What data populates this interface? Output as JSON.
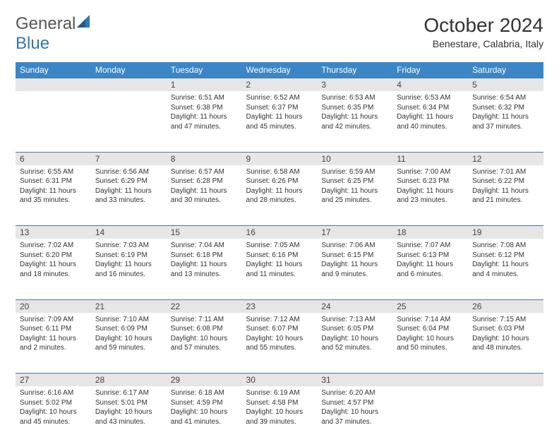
{
  "brand": {
    "name_a": "General",
    "name_b": "Blue"
  },
  "title": "October 2024",
  "location": "Benestare, Calabria, Italy",
  "day_headers": [
    "Sunday",
    "Monday",
    "Tuesday",
    "Wednesday",
    "Thursday",
    "Friday",
    "Saturday"
  ],
  "colors": {
    "header_bg": "#3b86c6",
    "header_text": "#ffffff",
    "daynum_bg": "#e6e6e6",
    "rule": "#4a77a4",
    "logo_blue": "#2f77b5"
  },
  "weeks": [
    [
      null,
      null,
      {
        "n": "1",
        "sunrise": "Sunrise: 6:51 AM",
        "sunset": "Sunset: 6:38 PM",
        "day": "Daylight: 11 hours and 47 minutes."
      },
      {
        "n": "2",
        "sunrise": "Sunrise: 6:52 AM",
        "sunset": "Sunset: 6:37 PM",
        "day": "Daylight: 11 hours and 45 minutes."
      },
      {
        "n": "3",
        "sunrise": "Sunrise: 6:53 AM",
        "sunset": "Sunset: 6:35 PM",
        "day": "Daylight: 11 hours and 42 minutes."
      },
      {
        "n": "4",
        "sunrise": "Sunrise: 6:53 AM",
        "sunset": "Sunset: 6:34 PM",
        "day": "Daylight: 11 hours and 40 minutes."
      },
      {
        "n": "5",
        "sunrise": "Sunrise: 6:54 AM",
        "sunset": "Sunset: 6:32 PM",
        "day": "Daylight: 11 hours and 37 minutes."
      }
    ],
    [
      {
        "n": "6",
        "sunrise": "Sunrise: 6:55 AM",
        "sunset": "Sunset: 6:31 PM",
        "day": "Daylight: 11 hours and 35 minutes."
      },
      {
        "n": "7",
        "sunrise": "Sunrise: 6:56 AM",
        "sunset": "Sunset: 6:29 PM",
        "day": "Daylight: 11 hours and 33 minutes."
      },
      {
        "n": "8",
        "sunrise": "Sunrise: 6:57 AM",
        "sunset": "Sunset: 6:28 PM",
        "day": "Daylight: 11 hours and 30 minutes."
      },
      {
        "n": "9",
        "sunrise": "Sunrise: 6:58 AM",
        "sunset": "Sunset: 6:26 PM",
        "day": "Daylight: 11 hours and 28 minutes."
      },
      {
        "n": "10",
        "sunrise": "Sunrise: 6:59 AM",
        "sunset": "Sunset: 6:25 PM",
        "day": "Daylight: 11 hours and 25 minutes."
      },
      {
        "n": "11",
        "sunrise": "Sunrise: 7:00 AM",
        "sunset": "Sunset: 6:23 PM",
        "day": "Daylight: 11 hours and 23 minutes."
      },
      {
        "n": "12",
        "sunrise": "Sunrise: 7:01 AM",
        "sunset": "Sunset: 6:22 PM",
        "day": "Daylight: 11 hours and 21 minutes."
      }
    ],
    [
      {
        "n": "13",
        "sunrise": "Sunrise: 7:02 AM",
        "sunset": "Sunset: 6:20 PM",
        "day": "Daylight: 11 hours and 18 minutes."
      },
      {
        "n": "14",
        "sunrise": "Sunrise: 7:03 AM",
        "sunset": "Sunset: 6:19 PM",
        "day": "Daylight: 11 hours and 16 minutes."
      },
      {
        "n": "15",
        "sunrise": "Sunrise: 7:04 AM",
        "sunset": "Sunset: 6:18 PM",
        "day": "Daylight: 11 hours and 13 minutes."
      },
      {
        "n": "16",
        "sunrise": "Sunrise: 7:05 AM",
        "sunset": "Sunset: 6:16 PM",
        "day": "Daylight: 11 hours and 11 minutes."
      },
      {
        "n": "17",
        "sunrise": "Sunrise: 7:06 AM",
        "sunset": "Sunset: 6:15 PM",
        "day": "Daylight: 11 hours and 9 minutes."
      },
      {
        "n": "18",
        "sunrise": "Sunrise: 7:07 AM",
        "sunset": "Sunset: 6:13 PM",
        "day": "Daylight: 11 hours and 6 minutes."
      },
      {
        "n": "19",
        "sunrise": "Sunrise: 7:08 AM",
        "sunset": "Sunset: 6:12 PM",
        "day": "Daylight: 11 hours and 4 minutes."
      }
    ],
    [
      {
        "n": "20",
        "sunrise": "Sunrise: 7:09 AM",
        "sunset": "Sunset: 6:11 PM",
        "day": "Daylight: 11 hours and 2 minutes."
      },
      {
        "n": "21",
        "sunrise": "Sunrise: 7:10 AM",
        "sunset": "Sunset: 6:09 PM",
        "day": "Daylight: 10 hours and 59 minutes."
      },
      {
        "n": "22",
        "sunrise": "Sunrise: 7:11 AM",
        "sunset": "Sunset: 6:08 PM",
        "day": "Daylight: 10 hours and 57 minutes."
      },
      {
        "n": "23",
        "sunrise": "Sunrise: 7:12 AM",
        "sunset": "Sunset: 6:07 PM",
        "day": "Daylight: 10 hours and 55 minutes."
      },
      {
        "n": "24",
        "sunrise": "Sunrise: 7:13 AM",
        "sunset": "Sunset: 6:05 PM",
        "day": "Daylight: 10 hours and 52 minutes."
      },
      {
        "n": "25",
        "sunrise": "Sunrise: 7:14 AM",
        "sunset": "Sunset: 6:04 PM",
        "day": "Daylight: 10 hours and 50 minutes."
      },
      {
        "n": "26",
        "sunrise": "Sunrise: 7:15 AM",
        "sunset": "Sunset: 6:03 PM",
        "day": "Daylight: 10 hours and 48 minutes."
      }
    ],
    [
      {
        "n": "27",
        "sunrise": "Sunrise: 6:16 AM",
        "sunset": "Sunset: 5:02 PM",
        "day": "Daylight: 10 hours and 45 minutes."
      },
      {
        "n": "28",
        "sunrise": "Sunrise: 6:17 AM",
        "sunset": "Sunset: 5:01 PM",
        "day": "Daylight: 10 hours and 43 minutes."
      },
      {
        "n": "29",
        "sunrise": "Sunrise: 6:18 AM",
        "sunset": "Sunset: 4:59 PM",
        "day": "Daylight: 10 hours and 41 minutes."
      },
      {
        "n": "30",
        "sunrise": "Sunrise: 6:19 AM",
        "sunset": "Sunset: 4:58 PM",
        "day": "Daylight: 10 hours and 39 minutes."
      },
      {
        "n": "31",
        "sunrise": "Sunrise: 6:20 AM",
        "sunset": "Sunset: 4:57 PM",
        "day": "Daylight: 10 hours and 37 minutes."
      },
      null,
      null
    ]
  ]
}
